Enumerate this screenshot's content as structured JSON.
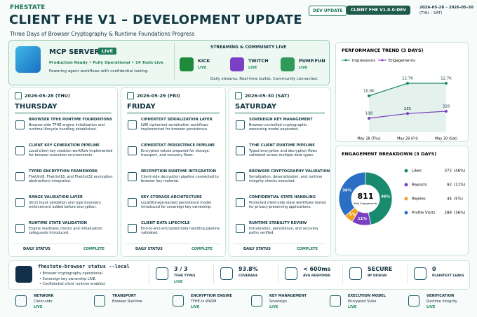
{
  "header": {
    "brand": "FHESTATE",
    "title": "CLIENT FHE V1 – DEVELOPMENT UPDATE",
    "subtitle": "Three Days of Browser Cryptography & Runtime Foundations Progress",
    "badges": [
      "DEV UPDATE",
      "CLIENT FHE V1.0.0-DEV"
    ],
    "date_range": "2026-05-28 – 2026-05-30",
    "date_days": "(THU – SAT)"
  },
  "mcp": {
    "title": "MCP SERVER",
    "status": "LIVE",
    "line1": "Production Ready • Fully Operational • 14 Tools Live",
    "line2": "Powering agent workflows with confidential tooling."
  },
  "streaming": {
    "title": "STREAMING & COMMUNITY LIVE",
    "platforms": [
      {
        "name": "KICK",
        "status": "LIVE",
        "color": "#1f8a3c"
      },
      {
        "name": "TWITCH",
        "status": "LIVE",
        "color": "#7b3fc4"
      },
      {
        "name": "PUMP.FUN",
        "status": "LIVE",
        "color": "#2f9a5a"
      }
    ],
    "note": "Daily streams. Real-time builds. Community connected."
  },
  "chart_data": [
    {
      "type": "line",
      "title": "PERFORMANCE TREND (3 DAYS)",
      "categories": [
        "May 28 (Thu)",
        "May 29 (Fri)",
        "May 30 (Sat)"
      ],
      "area": true,
      "series": [
        {
          "name": "Impressions",
          "color": "#1f8a6a",
          "values": [
            10800,
            12700,
            12700
          ],
          "value_labels": [
            "10.8K",
            "12.7K",
            "12.7K"
          ]
        },
        {
          "name": "Engagements",
          "color": "#7a3fc0",
          "values": [
            198,
            285,
            328
          ]
        }
      ]
    },
    {
      "type": "donut",
      "title": "ENGAGEMENT BREAKDOWN (3 DAYS)",
      "total": 811,
      "total_label": "Total Engagements",
      "categories": [
        "Likes",
        "Reposts",
        "Replies",
        "Profile Visits"
      ],
      "values": [
        372,
        92,
        44,
        288
      ],
      "colors": [
        "#1a8a6e",
        "#7b3fc4",
        "#f0a020",
        "#2b6fc4"
      ],
      "share_labels": [
        "46%",
        "11%",
        "5%",
        "36%"
      ],
      "legend_share_labels": [
        "(46%)",
        "(11%)",
        "(5%)",
        "(36%)"
      ]
    }
  ],
  "days": [
    {
      "date": "2026-05-28 (THU)",
      "name": "THURSDAY",
      "status_label": "DAILY STATUS",
      "status": "COMPLETE",
      "items": [
        {
          "title": "BROWSER TFHE RUNTIME FOUNDATIONS",
          "text": "Browser-side TFHE engine initialization and runtime lifecycle handling established."
        },
        {
          "title": "CLIENT KEY GENERATION PIPELINE",
          "text": "Local client key creation workflow implemented for browser execution environments."
        },
        {
          "title": "TYPED ENCRYPTION FRAMEWORK",
          "text": "FheUint8, FheUint16, and FheUint32 encryption abstractions integrated."
        },
        {
          "title": "RANGE VALIDATION LAYER",
          "text": "Strict input validation and type boundary enforcement added before encryption."
        },
        {
          "title": "RUNTIME STATE VALIDATION",
          "text": "Engine readiness checks and initialization safeguards introduced."
        }
      ]
    },
    {
      "date": "2026-05-29 (FRI)",
      "name": "FRIDAY",
      "status_label": "DAILY STATUS",
      "status": "COMPLETE",
      "items": [
        {
          "title": "CIPHERTEXT SERIALIZATION LAYER",
          "text": "LWE ciphertext serialization workflows implemented for browser persistence."
        },
        {
          "title": "CIPHERTEXT PERSISTENCE PIPELINE",
          "text": "Encrypted values prepared for storage, transport, and recovery flows."
        },
        {
          "title": "DECRYPTION RUNTIME INTEGRATION",
          "text": "Client-side decryption pipeline connected to browser key material."
        },
        {
          "title": "KEY STORAGE ARCHITECTURE",
          "text": "LocalStorage-backed persistence model introduced for sovereign key ownership."
        },
        {
          "title": "CLIENT DATA LIFECYCLE",
          "text": "End-to-end encrypted data handling pipeline validated."
        }
      ]
    },
    {
      "date": "2026-05-30 (SAT)",
      "name": "SATURDAY",
      "status_label": "DAILY STATUS",
      "status": "COMPLETE",
      "items": [
        {
          "title": "SOVEREIGN KEY MANAGEMENT",
          "text": "Browser-controlled cryptographic ownership model expanded."
        },
        {
          "title": "TFHE CLIENT RUNTIME PIPELINE",
          "text": "Typed encryption and decryption flows validated across multiple data types."
        },
        {
          "title": "BROWSER CRYPTOGRAPHY VALIDATION",
          "text": "Serialization, deserialization, and runtime integrity checks executed."
        },
        {
          "title": "CONFIDENTIAL STATE HANDLING",
          "text": "Protected client-side state workflows tested for privacy-preserving applications."
        },
        {
          "title": "RUNTIME STABILITY REVIEW",
          "text": "Initialization, persistence, and recovery paths verified."
        }
      ]
    }
  ],
  "terminal": {
    "command": "fhestate-browser status --local",
    "lines": [
      "• Browser cryptography operational.",
      "• Sovereign key ownership LIVE.",
      "• Confidential client runtime enabled."
    ]
  },
  "stats": [
    {
      "value": "3 / 3",
      "label": "TFHE TYPES",
      "status": "LIVE"
    },
    {
      "value": "93.8%",
      "label": "COVERAGE"
    },
    {
      "value": "< 600ms",
      "label": "AVG RESPONSE"
    },
    {
      "value": "SECURE",
      "label": "BY DESIGN"
    },
    {
      "value": "0",
      "label": "PLAINTEXT LEAKS"
    }
  ],
  "footer": [
    {
      "label": "NETWORK",
      "value": "Client-side",
      "status": "LIVE"
    },
    {
      "label": "TRANSPORT",
      "value": "Browser Runtime"
    },
    {
      "label": "ENCRYPTION ENGINE",
      "value": "TFHE-rs WASM",
      "status": "LIVE"
    },
    {
      "label": "KEY MANAGEMENT",
      "value": "Sovereign",
      "status": "LIVE"
    },
    {
      "label": "EXECUTION MODEL",
      "value": "Encrypted State",
      "status": "LIVE"
    },
    {
      "label": "VERIFICATION",
      "value": "Runtime Integrity",
      "status": "LIVE"
    }
  ]
}
